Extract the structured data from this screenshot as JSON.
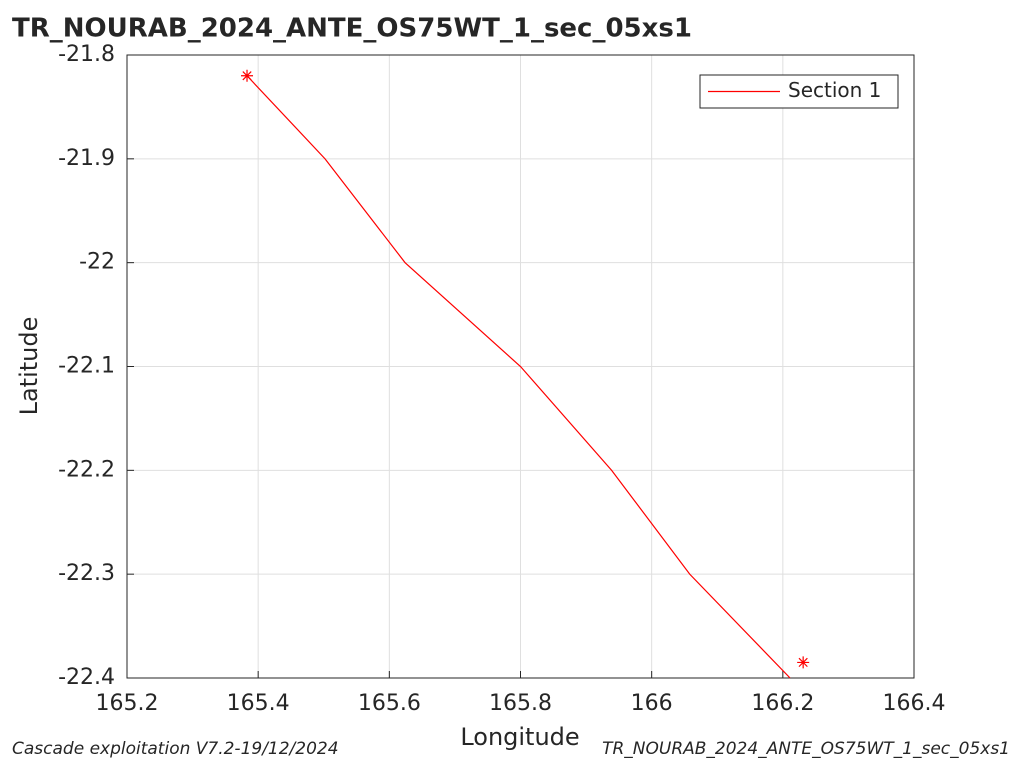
{
  "chart_data": {
    "type": "line",
    "title": "TR_NOURAB_2024_ANTE_OS75WT_1_sec_05xs1",
    "x_label": "Longitude",
    "y_label": "Latitude",
    "footer_left": "Cascade exploitation V7.2-19/12/2024",
    "footer_right": "TR_NOURAB_2024_ANTE_OS75WT_1_sec_05xs1",
    "x": [
      165.383,
      165.502,
      165.624,
      165.8,
      165.939,
      166.058,
      166.211
    ],
    "series": [
      {
        "name": "Section 1",
        "color": "#ff0000",
        "values": [
          -21.82,
          -21.9,
          -22.0,
          -22.1,
          -22.2,
          -22.3,
          -22.4
        ]
      }
    ],
    "markers": {
      "color": "#ff0000",
      "x": [
        165.383,
        166.231
      ],
      "y": [
        -21.82,
        -22.385
      ]
    },
    "xlim": [
      165.2,
      166.4
    ],
    "ylim": [
      -22.4,
      -21.8
    ],
    "xticks": [
      165.2,
      165.4,
      165.6,
      165.8,
      166,
      166.2,
      166.4
    ],
    "yticks": [
      -21.8,
      -21.9,
      -22,
      -22.1,
      -22.2,
      -22.3,
      -22.4
    ],
    "grid": true,
    "legend": "northeast"
  }
}
